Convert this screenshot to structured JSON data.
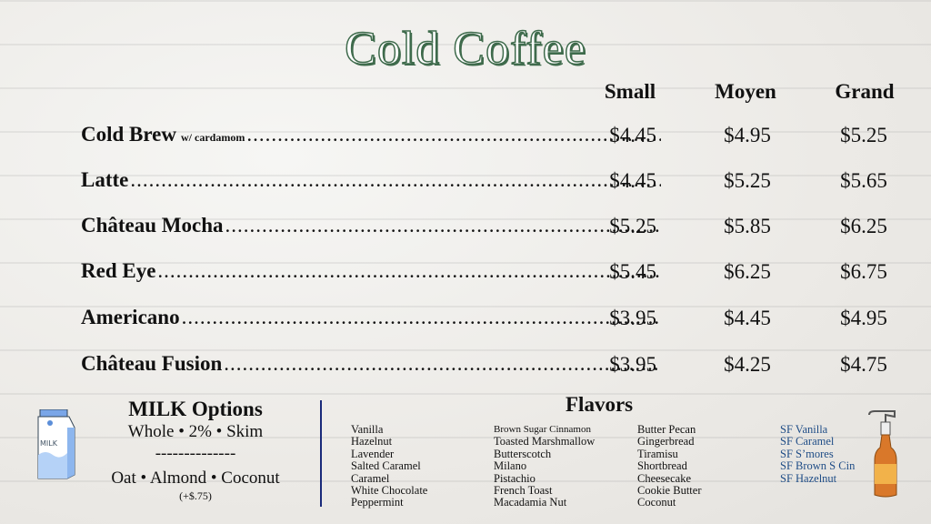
{
  "title": "Cold Coffee",
  "sizes": [
    "Small",
    "Moyen",
    "Grand"
  ],
  "items": [
    {
      "name": "Cold Brew",
      "note": "w/ cardamom",
      "prices": [
        "$4.45",
        "$4.95",
        "$5.25"
      ]
    },
    {
      "name": "Latte",
      "note": "",
      "prices": [
        "$4.45",
        "$5.25",
        "$5.65"
      ]
    },
    {
      "name": "Château Mocha",
      "note": "",
      "prices": [
        "$5.25",
        "$5.85",
        "$6.25"
      ]
    },
    {
      "name": "Red Eye",
      "note": "",
      "prices": [
        "$5.45",
        "$6.25",
        "$6.75"
      ]
    },
    {
      "name": "Americano",
      "note": "",
      "prices": [
        "$3.95",
        "$4.45",
        "$4.95"
      ]
    },
    {
      "name": "Château Fusion",
      "note": "",
      "prices": [
        "$3.95",
        "$4.25",
        "$4.75"
      ]
    }
  ],
  "milk": {
    "title": "MILK Options",
    "line1": "Whole • 2% • Skim",
    "separator": "--------------",
    "line2": "Oat • Almond • Coconut",
    "surcharge": "(+$.75)",
    "icon": "milk-carton-icon",
    "carton_label": "MILK"
  },
  "flavors": {
    "title": "Flavors",
    "col1": [
      "Vanilla",
      "Hazelnut",
      "Lavender",
      "Salted Caramel",
      "Caramel",
      "White Chocolate",
      "Peppermint"
    ],
    "col2": [
      "Brown Sugar Cinnamon",
      "Toasted Marshmallow",
      "Butterscotch",
      "Milano",
      "Pistachio",
      "French Toast",
      "Macadamia Nut"
    ],
    "col3": [
      "Butter Pecan",
      "Gingerbread",
      "Tiramisu",
      "Shortbread",
      "Cheesecake",
      "Cookie Butter",
      "Coconut"
    ],
    "sugar_free": [
      "SF Vanilla",
      "SF Caramel",
      "SF S’mores",
      "SF Brown S Cin",
      "SF Hazelnut"
    ],
    "icon": "syrup-bottle-icon"
  },
  "colors": {
    "title": "#3f6b4c",
    "sugar_free": "#1e4c86",
    "divider": "#1a2a7a"
  }
}
